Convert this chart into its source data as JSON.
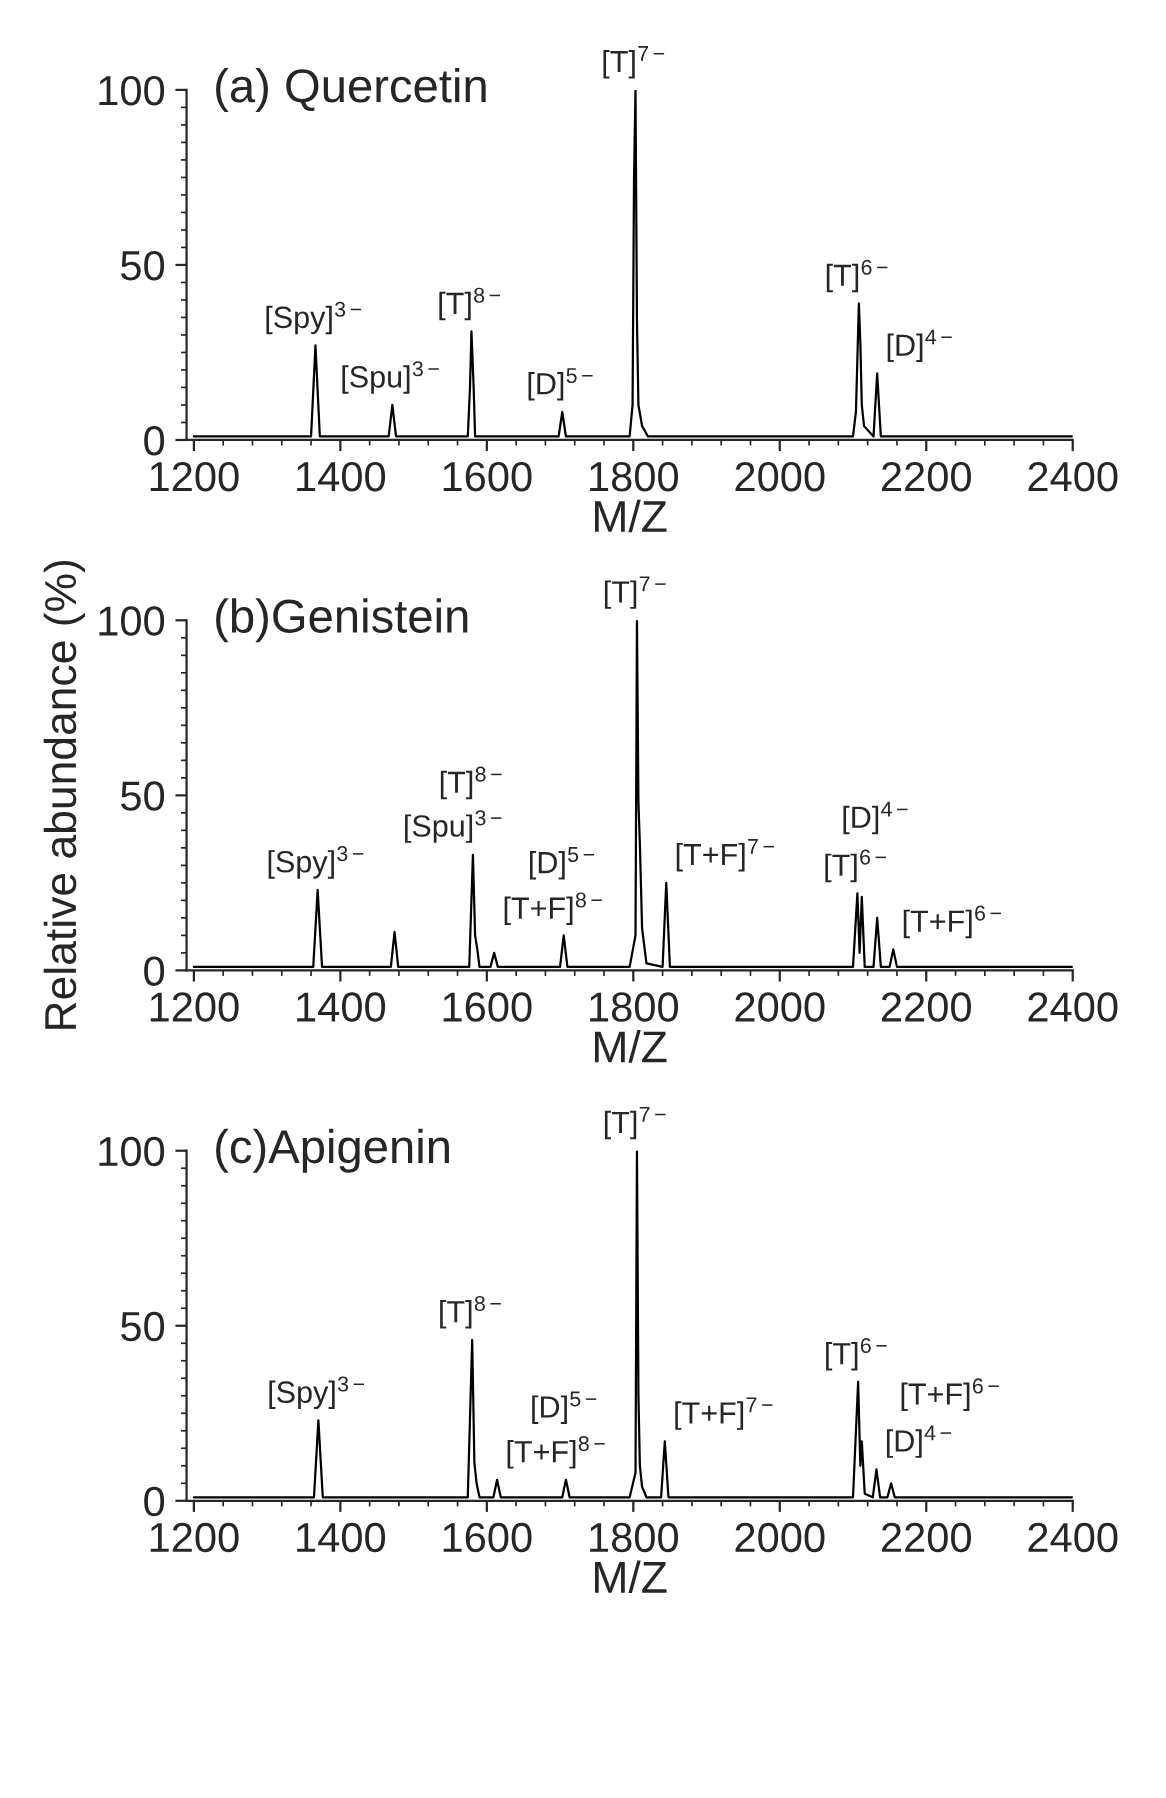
{
  "chart_data": [
    {
      "type": "line",
      "title": "(a) Quercetin",
      "xlabel": "M/Z",
      "color": "#000000",
      "xlim": [
        1190,
        2400
      ],
      "xticks": [
        1200,
        1400,
        1600,
        1800,
        2000,
        2200,
        2400
      ],
      "ylim": [
        0,
        100
      ],
      "yticks": [
        0,
        50,
        100
      ],
      "x": [
        1200,
        1360,
        1366,
        1372,
        1466,
        1471,
        1476,
        1574,
        1577,
        1579,
        1582,
        1584,
        1698,
        1703,
        1708,
        1795,
        1799,
        1801,
        1803,
        1805,
        1807,
        1812,
        1820,
        2100,
        2104,
        2108,
        2110,
        2112,
        2115,
        2128,
        2133,
        2138,
        2400
      ],
      "values": [
        1,
        1,
        27,
        1,
        1,
        10,
        1,
        1,
        15,
        31,
        15,
        1,
        1,
        8,
        1,
        1,
        10,
        75,
        100,
        34,
        10,
        4,
        1,
        1,
        8,
        39,
        28,
        10,
        4,
        1,
        19,
        1,
        1
      ],
      "annotations": [
        {
          "text": "[Spy]$^{3−}$",
          "x": 1366,
          "y": 27
        },
        {
          "text": "[Spu]$^{3−}$",
          "x": 1471,
          "y": 10
        },
        {
          "text": "[T]$^{8−}$",
          "x": 1579,
          "y": 31
        },
        {
          "text": "[D]$^{5−}$",
          "x": 1703,
          "y": 8
        },
        {
          "text": "[T]$^{7−}$",
          "x": 1803,
          "y": 100
        },
        {
          "text": "[T]$^{6−}$",
          "x": 2108,
          "y": 39
        },
        {
          "text": "[D]$^{4−}$",
          "x": 2133,
          "y": 19
        }
      ]
    },
    {
      "type": "line",
      "title": "(b)Genistein",
      "xlabel": "M/Z",
      "ylabel": "Relative abundance (%)",
      "color": "#000000",
      "xlim": [
        1190,
        2400
      ],
      "xticks": [
        1200,
        1400,
        1600,
        1800,
        2000,
        2200,
        2400
      ],
      "ylim": [
        0,
        100
      ],
      "yticks": [
        0,
        50,
        100
      ],
      "x": [
        1200,
        1363,
        1369,
        1375,
        1469,
        1474,
        1479,
        1576,
        1581,
        1584,
        1587,
        1590,
        1605,
        1610,
        1615,
        1700,
        1705,
        1710,
        1795,
        1803,
        1805,
        1807,
        1809,
        1812,
        1818,
        1840,
        1845,
        1850,
        2100,
        2106,
        2109,
        2112,
        2116,
        2128,
        2133,
        2138,
        2150,
        2155,
        2160,
        2400
      ],
      "values": [
        1,
        1,
        23,
        1,
        1,
        11,
        1,
        1,
        33,
        10,
        6,
        1,
        1,
        5,
        1,
        1,
        10,
        1,
        1,
        10,
        100,
        48,
        36,
        12,
        2,
        1,
        25,
        1,
        1,
        22,
        5,
        21,
        1,
        1,
        15,
        1,
        1,
        6,
        1,
        1
      ],
      "annotations": [
        {
          "text": "[Spy]$^{3−}$",
          "x": 1369,
          "y": 23
        },
        {
          "text": "[Spu]$^{3−}$",
          "x": 1474,
          "y": 11
        },
        {
          "text": "[T]$^{8−}$",
          "x": 1581,
          "y": 33
        },
        {
          "text": "[T+F]$^{8−}$",
          "x": 1610,
          "y": 5
        },
        {
          "text": "[D]$^{5−}$",
          "x": 1705,
          "y": 10
        },
        {
          "text": "[T]$^{7−}$",
          "x": 1805,
          "y": 100
        },
        {
          "text": "[T+F]$^{7−}$",
          "x": 1845,
          "y": 25
        },
        {
          "text": "[T]$^{6−}$",
          "x": 2106,
          "y": 22
        },
        {
          "text": "[D]$^{4−}$",
          "x": 2133,
          "y": 15
        },
        {
          "text": "[T+F]$^{6−}$",
          "x": 2155,
          "y": 6
        }
      ]
    },
    {
      "type": "line",
      "title": "(c)Apigenin",
      "xlabel": "M/Z",
      "color": "#000000",
      "xlim": [
        1190,
        2400
      ],
      "xticks": [
        1200,
        1400,
        1600,
        1800,
        2000,
        2200,
        2400
      ],
      "ylim": [
        0,
        100
      ],
      "yticks": [
        0,
        50,
        100
      ],
      "x": [
        1200,
        1364,
        1370,
        1376,
        1574,
        1580,
        1583,
        1586,
        1590,
        1609,
        1614,
        1619,
        1703,
        1708,
        1713,
        1795,
        1803,
        1805,
        1807,
        1809,
        1812,
        1818,
        1838,
        1843,
        1848,
        2100,
        2107,
        2110,
        2112,
        2116,
        2127,
        2132,
        2137,
        2147,
        2152,
        2157,
        2400
      ],
      "values": [
        1,
        1,
        23,
        1,
        1,
        46,
        11,
        5,
        1,
        1,
        6,
        1,
        1,
        6,
        1,
        1,
        8,
        100,
        30,
        10,
        4,
        1,
        1,
        17,
        1,
        1,
        34,
        10,
        17,
        2,
        1,
        9,
        1,
        1,
        5,
        1,
        1
      ],
      "annotations": [
        {
          "text": "[Spy]$^{3−}$",
          "x": 1370,
          "y": 23
        },
        {
          "text": "[T]$^{8−}$",
          "x": 1580,
          "y": 46
        },
        {
          "text": "[T+F]$^{8−}$",
          "x": 1614,
          "y": 6
        },
        {
          "text": "[D]$^{5−}$",
          "x": 1708,
          "y": 6
        },
        {
          "text": "[T]$^{7−}$",
          "x": 1805,
          "y": 100
        },
        {
          "text": "[T+F]$^{7−}$",
          "x": 1843,
          "y": 17
        },
        {
          "text": "[T]$^{6−}$",
          "x": 2107,
          "y": 34
        },
        {
          "text": "[D]$^{4−}$",
          "x": 2132,
          "y": 9
        },
        {
          "text": "[T+F]$^{6−}$",
          "x": 2152,
          "y": 5
        }
      ]
    }
  ]
}
